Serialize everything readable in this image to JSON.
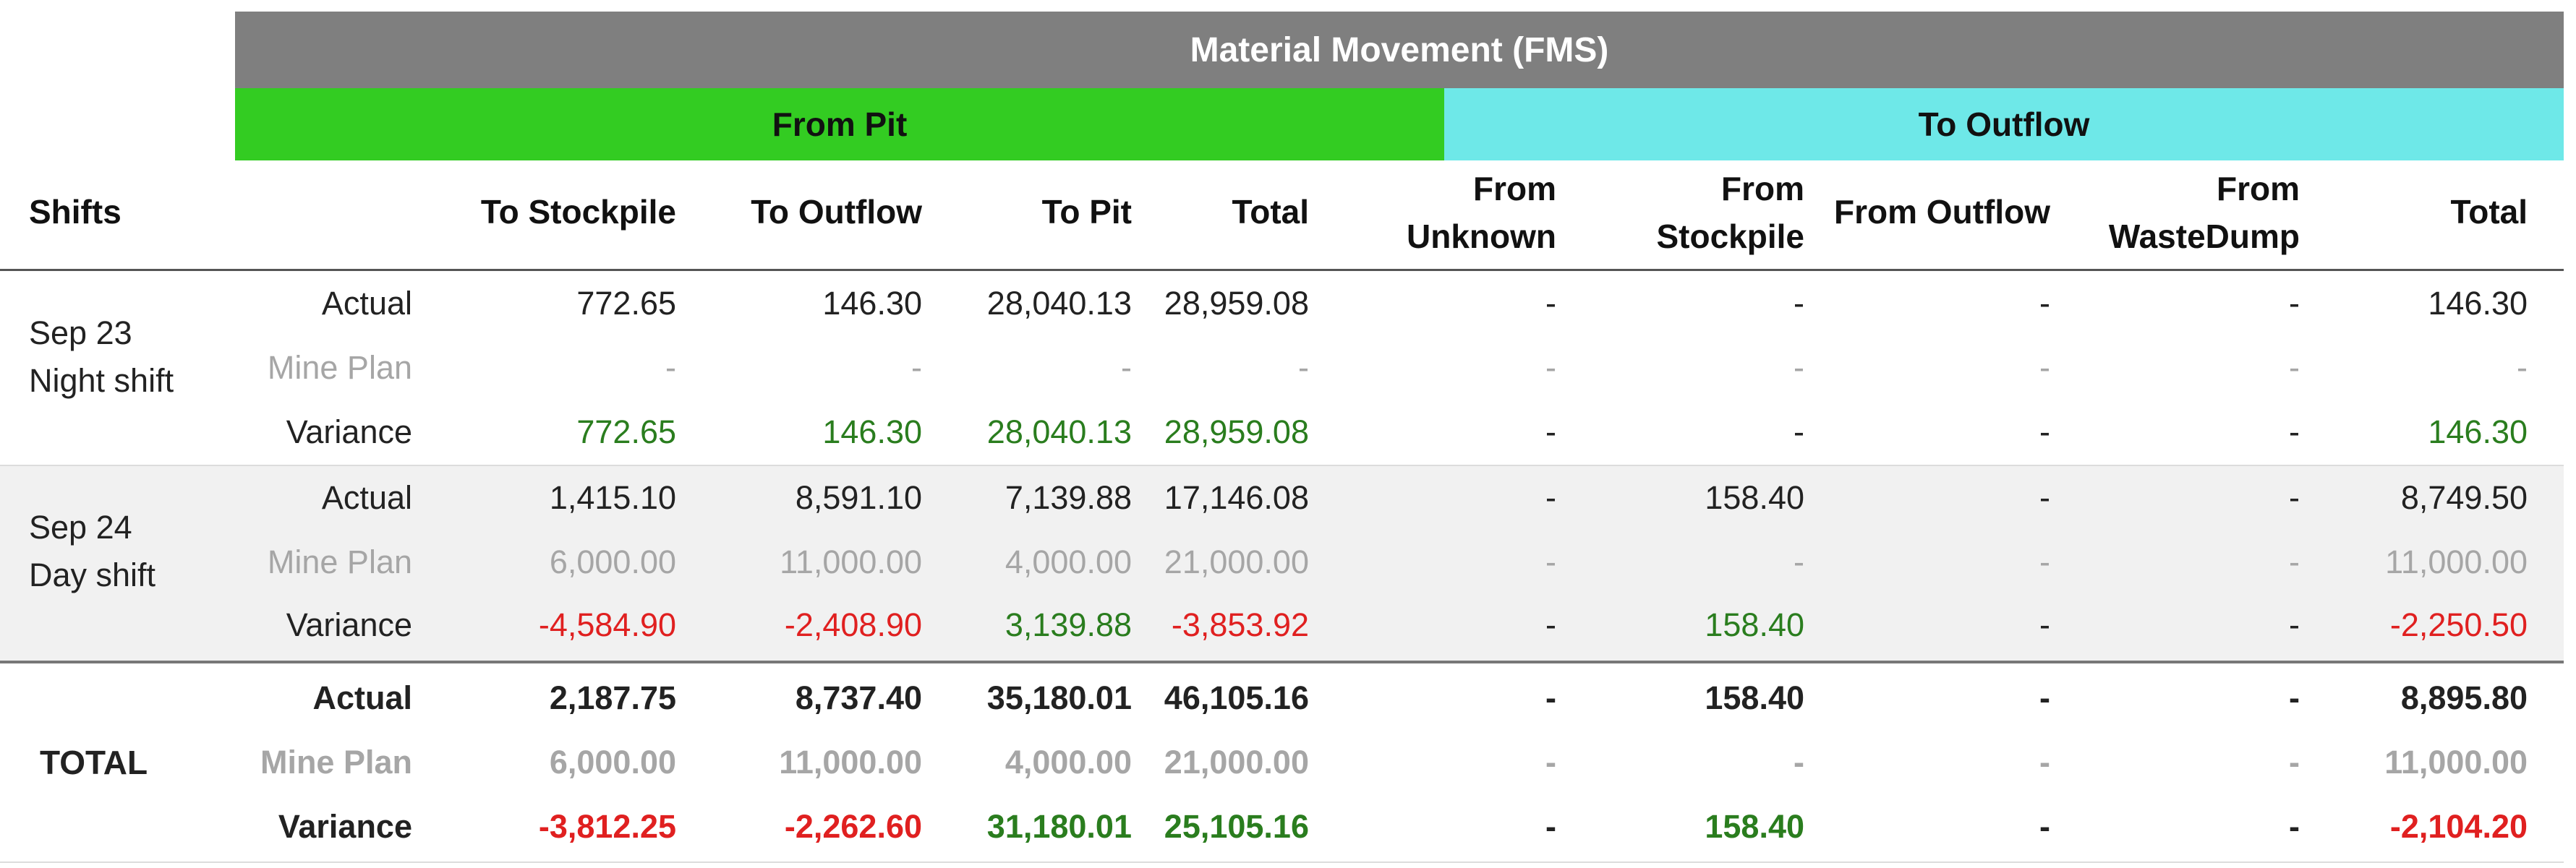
{
  "title": "Material Movement (FMS)",
  "groups": {
    "from_pit": "From Pit",
    "to_outflow": "To Outflow"
  },
  "headers": {
    "shifts": "Shifts",
    "cols": [
      {
        "line1": "",
        "line2": "To Stockpile"
      },
      {
        "line1": "",
        "line2": "To Outflow"
      },
      {
        "line1": "",
        "line2": "To Pit"
      },
      {
        "line1": "",
        "line2": "Total"
      },
      {
        "line1": "From",
        "line2": "Unknown"
      },
      {
        "line1": "From",
        "line2": "Stockpile"
      },
      {
        "line1": "",
        "line2": "From Outflow"
      },
      {
        "line1": "From",
        "line2": "WasteDump"
      },
      {
        "line1": "",
        "line2": "Total"
      }
    ]
  },
  "row_labels": {
    "actual": "Actual",
    "plan": "Mine Plan",
    "variance": "Variance"
  },
  "shifts": [
    {
      "name_line1": "Sep 23",
      "name_line2": "Night shift",
      "actual": [
        "772.65",
        "146.30",
        "28,040.13",
        "28,959.08",
        "-",
        "-",
        "-",
        "-",
        "146.30"
      ],
      "plan": [
        "-",
        "-",
        "-",
        "-",
        "-",
        "-",
        "-",
        "-",
        "-"
      ],
      "variance": [
        "772.65",
        "146.30",
        "28,040.13",
        "28,959.08",
        "-",
        "-",
        "-",
        "-",
        "146.30"
      ],
      "variance_sign": [
        "pos",
        "pos",
        "pos",
        "pos",
        "none",
        "none",
        "none",
        "none",
        "pos"
      ]
    },
    {
      "name_line1": "Sep 24",
      "name_line2": "Day shift",
      "actual": [
        "1,415.10",
        "8,591.10",
        "7,139.88",
        "17,146.08",
        "-",
        "158.40",
        "-",
        "-",
        "8,749.50"
      ],
      "plan": [
        "6,000.00",
        "11,000.00",
        "4,000.00",
        "21,000.00",
        "-",
        "-",
        "-",
        "-",
        "11,000.00"
      ],
      "variance": [
        "-4,584.90",
        "-2,408.90",
        "3,139.88",
        "-3,853.92",
        "-",
        "158.40",
        "-",
        "-",
        "-2,250.50"
      ],
      "variance_sign": [
        "neg",
        "neg",
        "pos",
        "neg",
        "none",
        "pos",
        "none",
        "none",
        "neg"
      ]
    }
  ],
  "total": {
    "label": "TOTAL",
    "actual": [
      "2,187.75",
      "8,737.40",
      "35,180.01",
      "46,105.16",
      "-",
      "158.40",
      "-",
      "-",
      "8,895.80"
    ],
    "plan": [
      "6,000.00",
      "11,000.00",
      "4,000.00",
      "21,000.00",
      "-",
      "-",
      "-",
      "-",
      "11,000.00"
    ],
    "variance": [
      "-3,812.25",
      "-2,262.60",
      "31,180.01",
      "25,105.16",
      "-",
      "158.40",
      "-",
      "-",
      "-2,104.20"
    ],
    "variance_sign": [
      "neg",
      "neg",
      "pos",
      "pos",
      "none",
      "pos",
      "none",
      "none",
      "neg"
    ]
  },
  "colors": {
    "title_band": "#7f7f7f",
    "from_pit_band": "#33cc22",
    "to_outflow_band": "#6ee8e8",
    "positive": "#2a7d1e",
    "negative": "#e02020",
    "muted": "#a6a6a6",
    "alt_row": "#f1f1f1"
  }
}
